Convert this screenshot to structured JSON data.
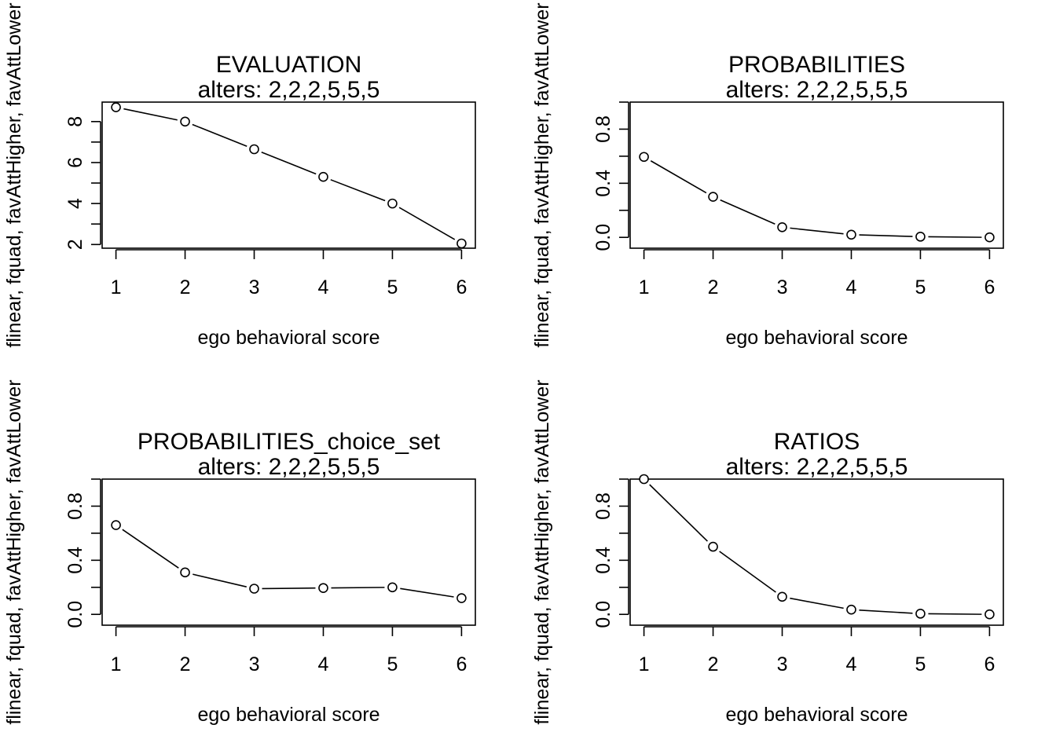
{
  "chart_data": [
    {
      "type": "line",
      "title": "EVALUATION",
      "subtitle": "alters: 2,2,2,5,5,5",
      "xlabel": "ego behavioral score",
      "ylabel": "flinear, fquad, favAttHigher, favAttLower",
      "x": [
        1,
        2,
        3,
        4,
        5,
        6
      ],
      "values": [
        8.7,
        8.0,
        6.65,
        5.3,
        4.0,
        2.05
      ],
      "xlim": [
        0.8,
        6.2
      ],
      "ylim": [
        1.82,
        8.95
      ],
      "xticks": [
        1,
        2,
        3,
        4,
        5,
        6
      ],
      "yticks": [
        2,
        3,
        4,
        5,
        6,
        7,
        8
      ],
      "yticklabels": [
        "2",
        "",
        "4",
        "",
        "6",
        "",
        "8"
      ],
      "grid": false
    },
    {
      "type": "line",
      "title": "PROBABILITIES",
      "subtitle": "alters: 2,2,2,5,5,5",
      "xlabel": "ego behavioral score",
      "ylabel": "flinear, fquad, favAttHigher, favAttLower",
      "x": [
        1,
        2,
        3,
        4,
        5,
        6
      ],
      "values": [
        0.595,
        0.3,
        0.075,
        0.02,
        0.005,
        0.0
      ],
      "xlim": [
        0.8,
        6.2
      ],
      "ylim": [
        -0.08,
        1.0
      ],
      "xticks": [
        1,
        2,
        3,
        4,
        5,
        6
      ],
      "yticks": [
        0.0,
        0.2,
        0.4,
        0.6,
        0.8,
        1.0
      ],
      "yticklabels": [
        "0.0",
        "",
        "0.4",
        "",
        "0.8",
        ""
      ],
      "grid": false
    },
    {
      "type": "line",
      "title": "PROBABILITIES_choice_set",
      "subtitle": "alters: 2,2,2,5,5,5",
      "xlabel": "ego behavioral score",
      "ylabel": "flinear, fquad, favAttHigher, favAttLower",
      "x": [
        1,
        2,
        3,
        4,
        5,
        6
      ],
      "values": [
        0.66,
        0.31,
        0.19,
        0.195,
        0.2,
        0.12
      ],
      "xlim": [
        0.8,
        6.2
      ],
      "ylim": [
        -0.08,
        1.0
      ],
      "xticks": [
        1,
        2,
        3,
        4,
        5,
        6
      ],
      "yticks": [
        0.0,
        0.2,
        0.4,
        0.6,
        0.8,
        1.0
      ],
      "yticklabels": [
        "0.0",
        "",
        "0.4",
        "",
        "0.8",
        ""
      ],
      "grid": false
    },
    {
      "type": "line",
      "title": "RATIOS",
      "subtitle": "alters: 2,2,2,5,5,5",
      "xlabel": "ego behavioral score",
      "ylabel": "flinear, fquad, favAttHigher, favAttLower",
      "x": [
        1,
        2,
        3,
        4,
        5,
        6
      ],
      "values": [
        1.0,
        0.5,
        0.13,
        0.035,
        0.005,
        0.0
      ],
      "xlim": [
        0.8,
        6.2
      ],
      "ylim": [
        -0.08,
        1.0
      ],
      "xticks": [
        1,
        2,
        3,
        4,
        5,
        6
      ],
      "yticks": [
        0.0,
        0.2,
        0.4,
        0.6,
        0.8,
        1.0
      ],
      "yticklabels": [
        "0.0",
        "",
        "0.4",
        "",
        "0.8",
        ""
      ],
      "grid": false
    }
  ]
}
